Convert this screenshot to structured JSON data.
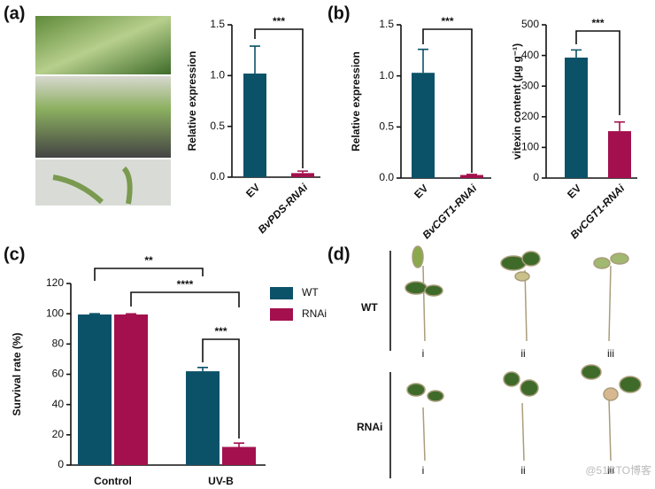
{
  "panel_labels": [
    "(a)",
    "(b)",
    "(c)",
    "(d)"
  ],
  "chart_data": [
    {
      "type": "bar",
      "ylabel": "Relative expression",
      "categories": [
        "EV",
        "BvPDS-RNAi"
      ],
      "series": [
        {
          "colors": [
            "#0b5268",
            "#a3104d"
          ],
          "values": [
            1.02,
            0.04
          ],
          "errors": [
            0.27,
            0.02
          ]
        }
      ],
      "ylim": [
        0,
        1.5
      ],
      "yticks": [
        {
          "value": 0,
          "label": "0.0"
        },
        {
          "value": 0.5,
          "label": "0.5"
        },
        {
          "value": 1,
          "label": "1.0"
        },
        {
          "value": 1.5,
          "label": "1.5"
        }
      ],
      "annotations": [
        "***"
      ]
    },
    {
      "type": "bar",
      "ylabel": "Relative expression",
      "categories": [
        "EV",
        "BvCGT1-RNAi"
      ],
      "series": [
        {
          "colors": [
            "#0b5268",
            "#a3104d"
          ],
          "values": [
            1.03,
            0.03
          ],
          "errors": [
            0.23,
            0.005
          ]
        }
      ],
      "ylim": [
        0,
        1.5
      ],
      "yticks": [
        {
          "value": 0,
          "label": "0.0"
        },
        {
          "value": 0.5,
          "label": "0.5"
        },
        {
          "value": 1,
          "label": "1.0"
        },
        {
          "value": 1.5,
          "label": "1.5"
        }
      ],
      "annotations": [
        "***"
      ]
    },
    {
      "type": "bar",
      "ylabel": "vitexin content (µg g⁻¹)",
      "categories": [
        "EV",
        "BvCGT1-RNAi"
      ],
      "series": [
        {
          "colors": [
            "#0b5268",
            "#a3104d"
          ],
          "values": [
            393,
            153
          ],
          "errors": [
            25,
            30
          ]
        }
      ],
      "ylim": [
        0,
        500
      ],
      "yticks": [
        0,
        100,
        200,
        300,
        400,
        500
      ],
      "annotations": [
        "***"
      ]
    },
    {
      "type": "bar",
      "ylabel": "Survival rate (%)",
      "categories": [
        "Control",
        "UV-B"
      ],
      "series": [
        {
          "name": "WT",
          "color": "#0b5268",
          "values": [
            99.5,
            62
          ],
          "errors": [
            0.5,
            2.5
          ]
        },
        {
          "name": "RNAi",
          "color": "#a3104d",
          "values": [
            99.5,
            12
          ],
          "errors": [
            0.4,
            2.5
          ]
        }
      ],
      "ylim": [
        0,
        120
      ],
      "yticks": [
        0,
        20,
        40,
        60,
        80,
        100,
        120
      ],
      "annotations": [
        "**",
        "****",
        "***"
      ]
    }
  ],
  "photos": {
    "rows": [
      "WT",
      "RNAi"
    ],
    "columns": [
      "i",
      "ii",
      "iii"
    ]
  },
  "watermark": "@51CTO博客"
}
